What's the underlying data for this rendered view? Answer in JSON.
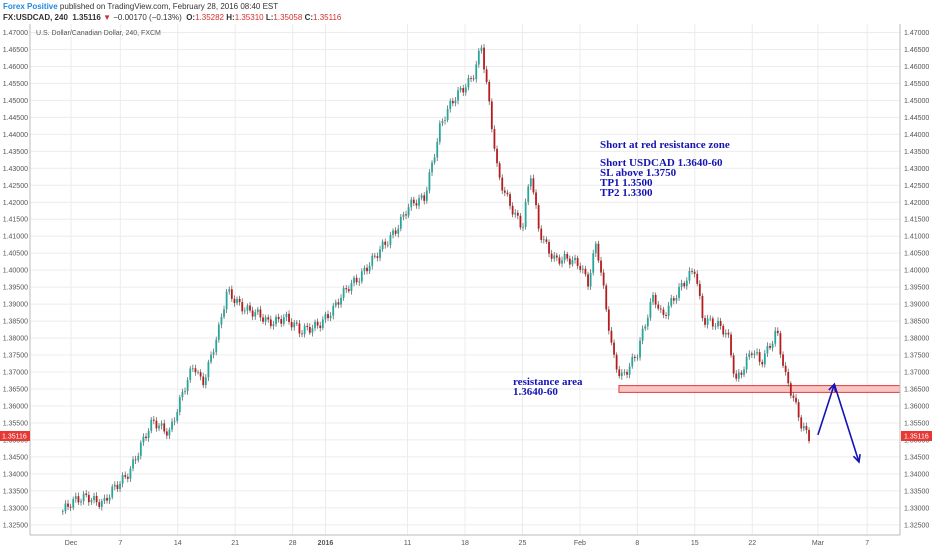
{
  "header": {
    "author": "Forex Positive",
    "published_text": "published on TradingView.com, February 28, 2016 08:40 EST",
    "symbol": "FX:USDCAD, 240",
    "last": "1.35116",
    "arrow": "▼",
    "change": "−0.00170 (−0.13%)",
    "o_label": "O:",
    "o_value": "1.35282",
    "h_label": "H:",
    "h_value": "1.35310",
    "l_label": "L:",
    "l_value": "1.35058",
    "c_label": "C:",
    "c_value": "1.35116"
  },
  "chart_data": {
    "type": "candlestick",
    "title": "U.S. Dollar/Canadian Dollar, 240, FXCM",
    "price_ticks": [
      "1.32500",
      "1.33000",
      "1.33500",
      "1.34000",
      "1.34500",
      "1.35000",
      "1.35500",
      "1.36000",
      "1.36500",
      "1.37000",
      "1.37500",
      "1.38000",
      "1.38500",
      "1.39000",
      "1.39500",
      "1.40000",
      "1.40500",
      "1.41000",
      "1.41500",
      "1.42000",
      "1.42500",
      "1.43000",
      "1.43500",
      "1.44000",
      "1.44500",
      "1.45000",
      "1.45500",
      "1.46000",
      "1.46500",
      "1.47000"
    ],
    "ylim": [
      1.322,
      1.4725
    ],
    "x_labels": [
      "Dec",
      "7",
      "14",
      "21",
      "28",
      "2016",
      "11",
      "18",
      "25",
      "Feb",
      "8",
      "15",
      "22",
      "Mar",
      "7"
    ],
    "last_price_label": "1.35116",
    "last_price": 1.35116,
    "anchors": [
      [
        "2015-11-30",
        1.329
      ],
      [
        "2015-12-03",
        1.334
      ],
      [
        "2015-12-05",
        1.331
      ],
      [
        "2015-12-08",
        1.341
      ],
      [
        "2015-12-11",
        1.355
      ],
      [
        "2015-12-13",
        1.353
      ],
      [
        "2015-12-16",
        1.372
      ],
      [
        "2015-12-17",
        1.367
      ],
      [
        "2015-12-19",
        1.382
      ],
      [
        "2015-12-20",
        1.393
      ],
      [
        "2015-12-23",
        1.388
      ],
      [
        "2015-12-25",
        1.384
      ],
      [
        "2015-12-27",
        1.387
      ],
      [
        "2015-12-29",
        1.381
      ],
      [
        "2016-01-02",
        1.388
      ],
      [
        "2016-01-04",
        1.396
      ],
      [
        "2016-01-07",
        1.403
      ],
      [
        "2016-01-11",
        1.418
      ],
      [
        "2016-01-13",
        1.421
      ],
      [
        "2016-01-15",
        1.443
      ],
      [
        "2016-01-17",
        1.451
      ],
      [
        "2016-01-19",
        1.458
      ],
      [
        "2016-01-20",
        1.466
      ],
      [
        "2016-01-21",
        1.447
      ],
      [
        "2016-01-22",
        1.428
      ],
      [
        "2016-01-25",
        1.412
      ],
      [
        "2016-01-26",
        1.428
      ],
      [
        "2016-01-27",
        1.412
      ],
      [
        "2016-01-29",
        1.403
      ],
      [
        "2016-02-01",
        1.402
      ],
      [
        "2016-02-02",
        1.397
      ],
      [
        "2016-02-03",
        1.408
      ],
      [
        "2016-02-05",
        1.375
      ],
      [
        "2016-02-06",
        1.369
      ],
      [
        "2016-02-08",
        1.375
      ],
      [
        "2016-02-10",
        1.393
      ],
      [
        "2016-02-11",
        1.387
      ],
      [
        "2016-02-13",
        1.393
      ],
      [
        "2016-02-15",
        1.401
      ],
      [
        "2016-02-16",
        1.386
      ],
      [
        "2016-02-19",
        1.381
      ],
      [
        "2016-02-20",
        1.368
      ],
      [
        "2016-02-22",
        1.376
      ],
      [
        "2016-02-23",
        1.372
      ],
      [
        "2016-02-25",
        1.383
      ],
      [
        "2016-02-26",
        1.369
      ],
      [
        "2016-02-28",
        1.354
      ],
      [
        "2016-02-29",
        1.3512
      ]
    ],
    "annotations": {
      "heading": "Short at red resistance zone",
      "lines": [
        "Short USDCAD 1.3640-60",
        "SL above 1.3750",
        "TP1 1.3500",
        "TP2 1.3300"
      ],
      "resistance_label": "resistance area",
      "resistance_range": "1.3640-60",
      "zone": [
        1.364,
        1.366
      ],
      "projection": [
        [
          "2016-03-01",
          1.3515
        ],
        [
          "2016-03-03",
          1.3664
        ],
        [
          "2016-03-06",
          1.3435
        ]
      ]
    },
    "colors": {
      "up": "#26a69a",
      "down": "#b71c1c",
      "wick": "#555555",
      "zone_fill": "#f8c5c5",
      "zone_edge": "#e53935",
      "annotation": "#1414b4",
      "last_tag": "#e53935",
      "grid": "#ececec"
    },
    "grid": true
  }
}
